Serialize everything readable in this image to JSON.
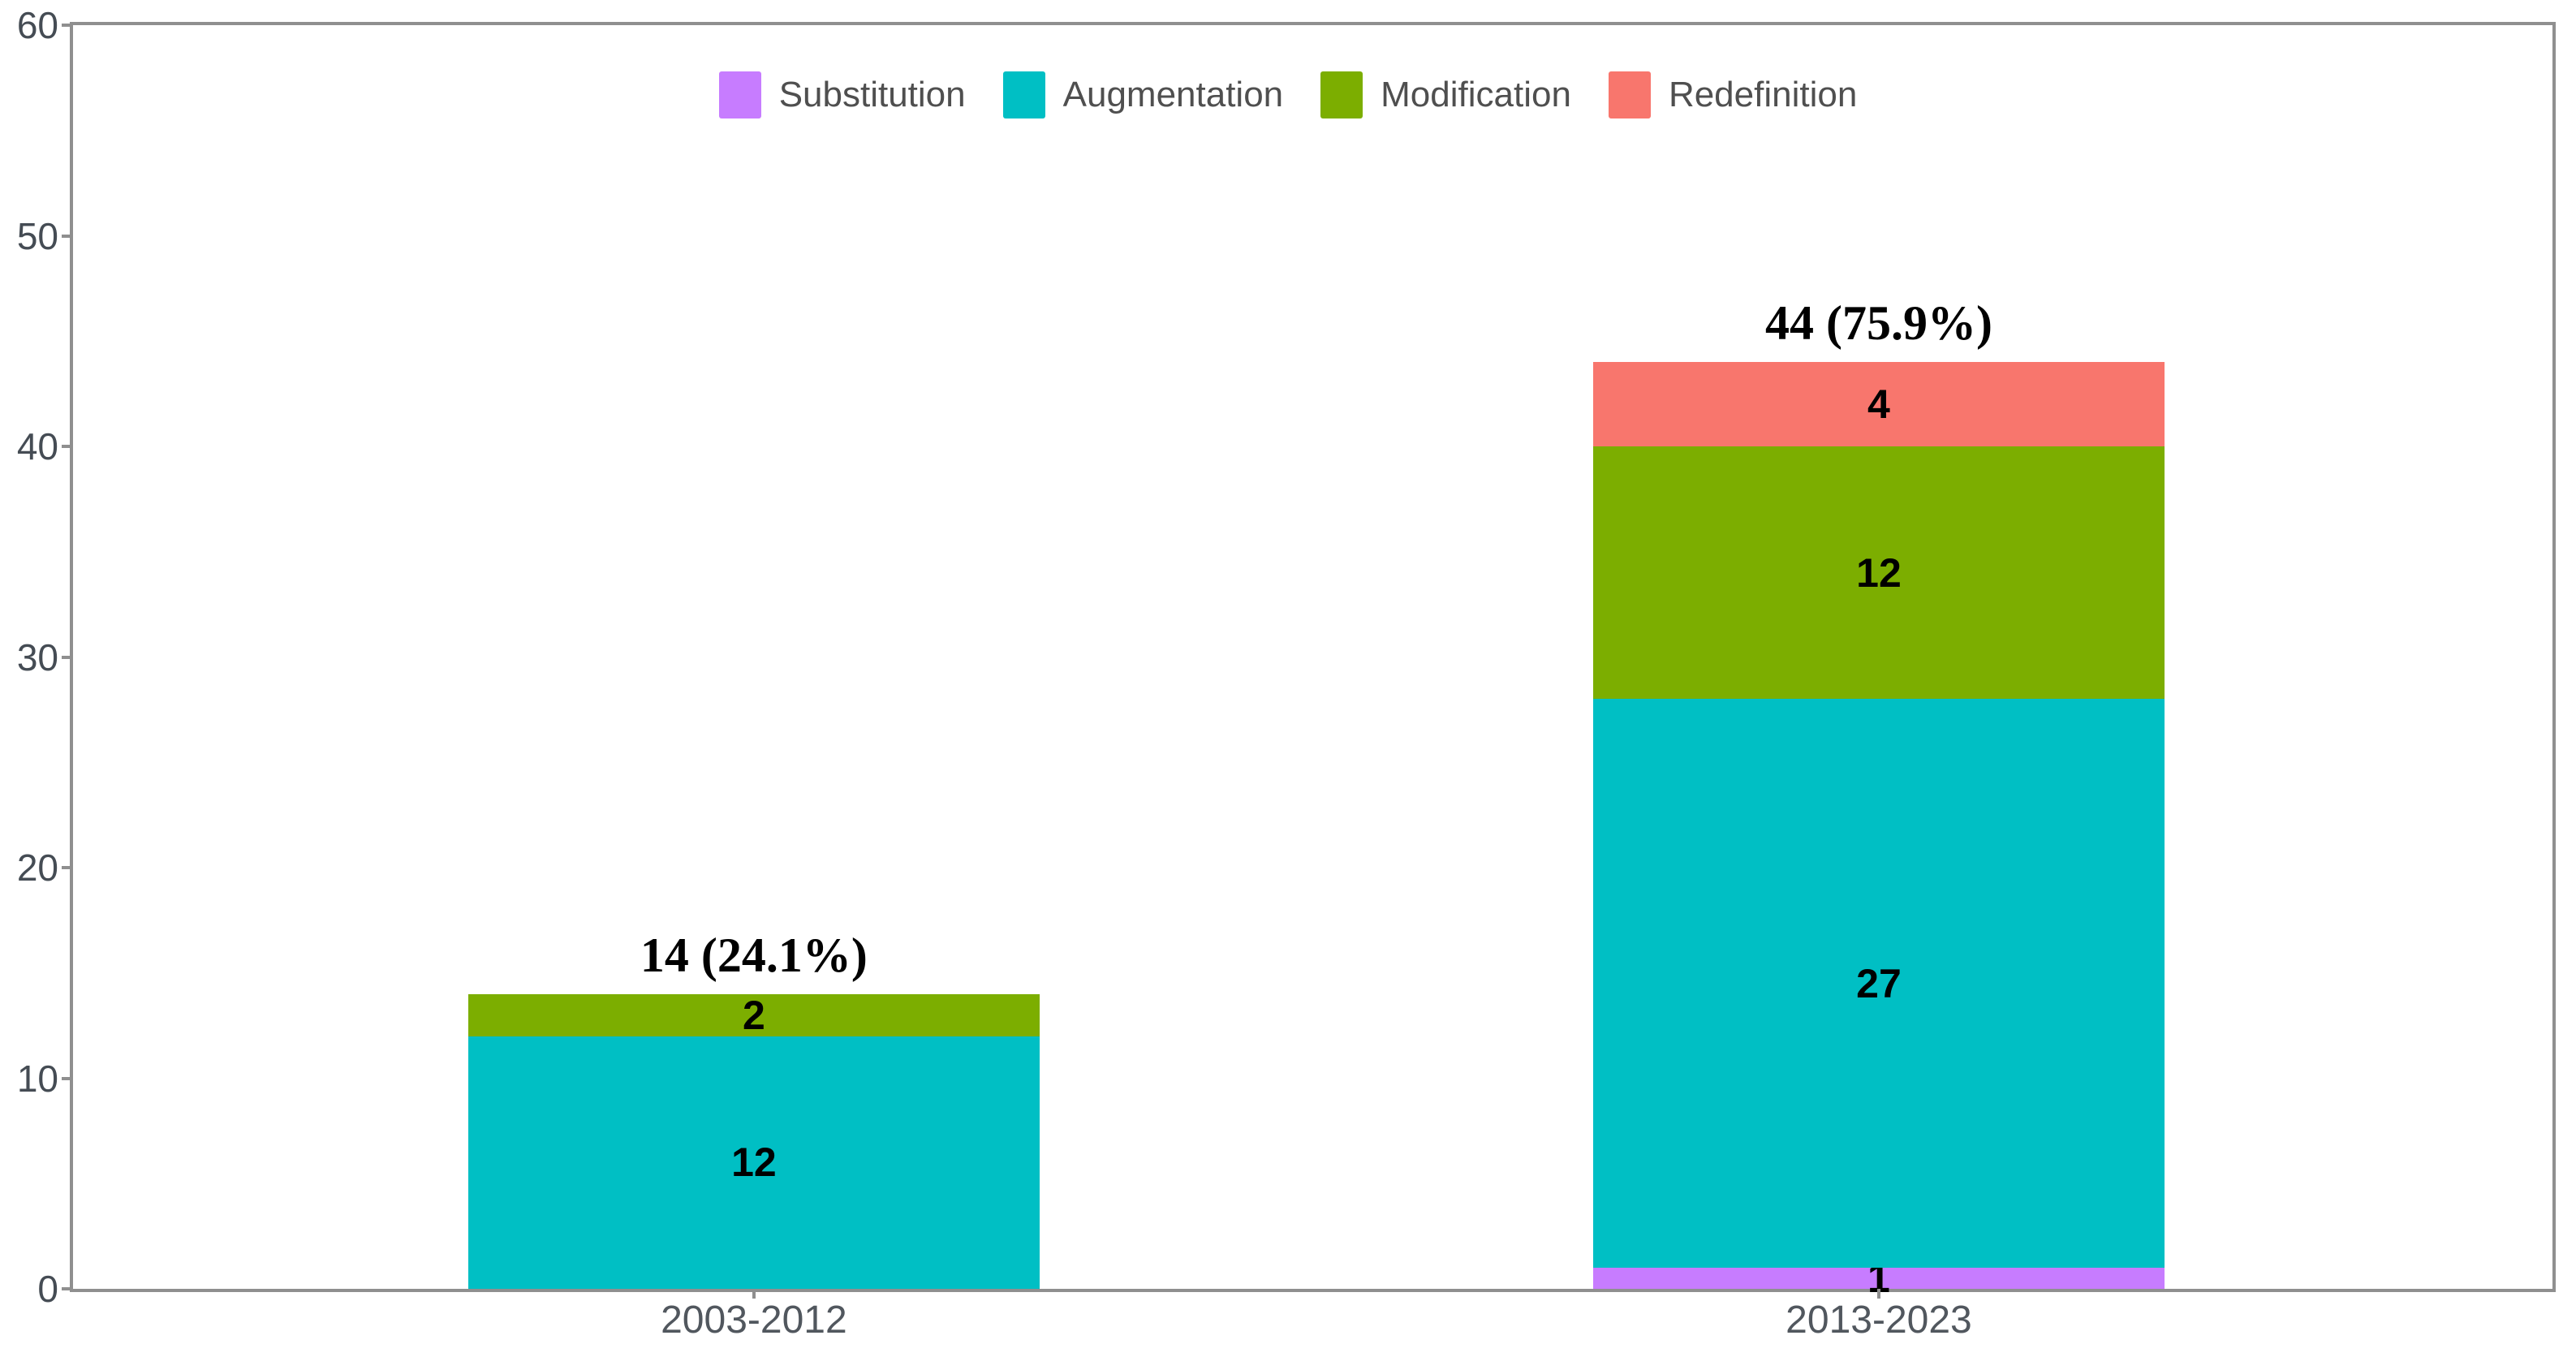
{
  "chart_data": {
    "type": "bar",
    "stacked": true,
    "title": "",
    "xlabel": "",
    "ylabel": "",
    "categories": [
      "2003-2012",
      "2013-2023"
    ],
    "series": [
      {
        "name": "Substitution",
        "color": "#C77CFF",
        "values": [
          0,
          1
        ]
      },
      {
        "name": "Augmentation",
        "color": "#00BFC4",
        "values": [
          12,
          27
        ]
      },
      {
        "name": "Modification",
        "color": "#7CAE00",
        "values": [
          2,
          12
        ]
      },
      {
        "name": "Redefinition",
        "color": "#F8766D",
        "values": [
          0,
          4
        ]
      }
    ],
    "bar_total_labels": [
      "14 (24.1%)",
      "44 (75.9%)"
    ],
    "segment_labels": [
      [
        "",
        "1"
      ],
      [
        "12",
        "27"
      ],
      [
        "2",
        "12"
      ],
      [
        "",
        "4"
      ]
    ],
    "ylim": [
      0,
      60
    ],
    "yticks": [
      "0",
      "10",
      "20",
      "30",
      "40",
      "50",
      "60"
    ],
    "grid": false,
    "legend_position": "top",
    "axis_color": "#8f8f8f"
  }
}
